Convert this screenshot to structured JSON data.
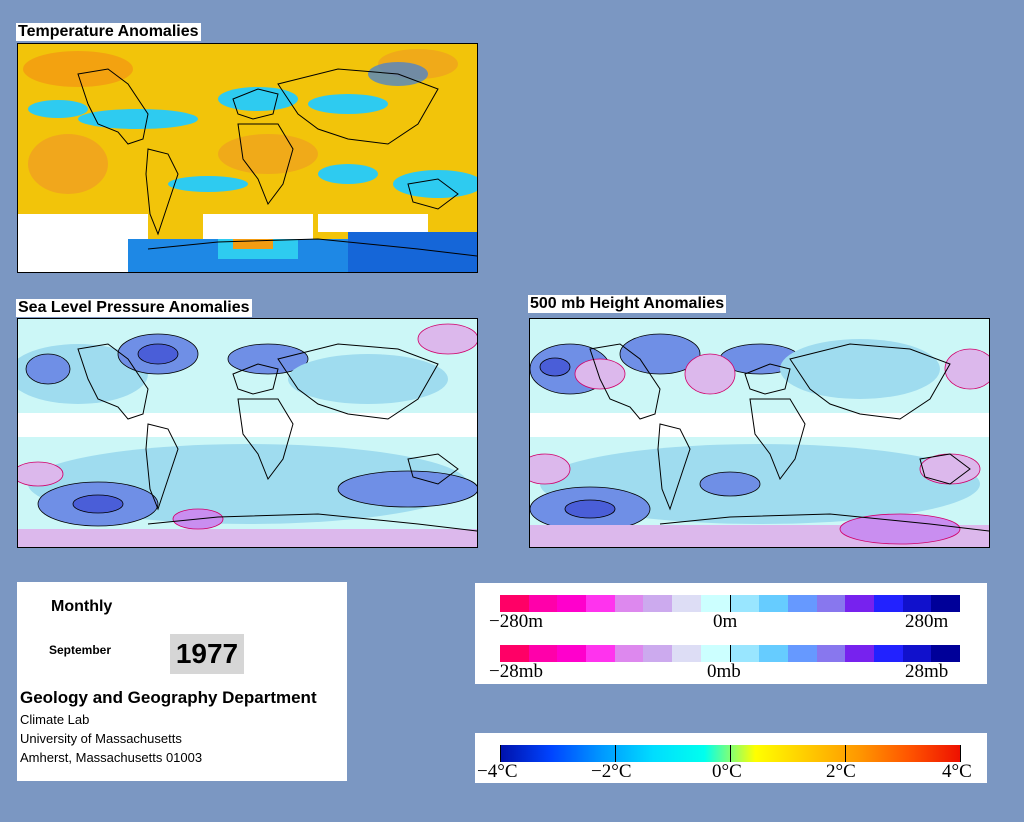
{
  "titles": {
    "temperature": "Temperature Anomalies",
    "slp": "Sea Level Pressure Anomalies",
    "height500": "500 mb Height Anomalies"
  },
  "info": {
    "period": "Monthly",
    "month": "September",
    "year": "1977",
    "department": "Geology and Geography Department",
    "lab": "Climate Lab",
    "university": "University of Massachusetts",
    "address": "Amherst, Massachusetts 01003"
  },
  "pressure_legend": {
    "colors": [
      "#ff0066",
      "#ff00aa",
      "#ff00cc",
      "#ff33ee",
      "#dd88ee",
      "#ccaaee",
      "#ddddf5",
      "#ccffff",
      "#99e6ff",
      "#66ccff",
      "#6699ff",
      "#8877ee",
      "#7722ee",
      "#2222ff",
      "#1111cc",
      "#000099"
    ],
    "height_ticks": [
      "−280m",
      "0m",
      "280m"
    ],
    "slp_ticks": [
      "−28mb",
      "0mb",
      "28mb"
    ]
  },
  "temperature_legend": {
    "stops": [
      "#0011aa",
      "#0044ff",
      "#0099ff",
      "#00ddff",
      "#00ffee",
      "#ffff00",
      "#ffcc00",
      "#ff9900",
      "#ff5500",
      "#ee1100"
    ],
    "ticks": [
      "−4°C",
      "−2°C",
      "0°C",
      "2°C",
      "4°C"
    ]
  }
}
